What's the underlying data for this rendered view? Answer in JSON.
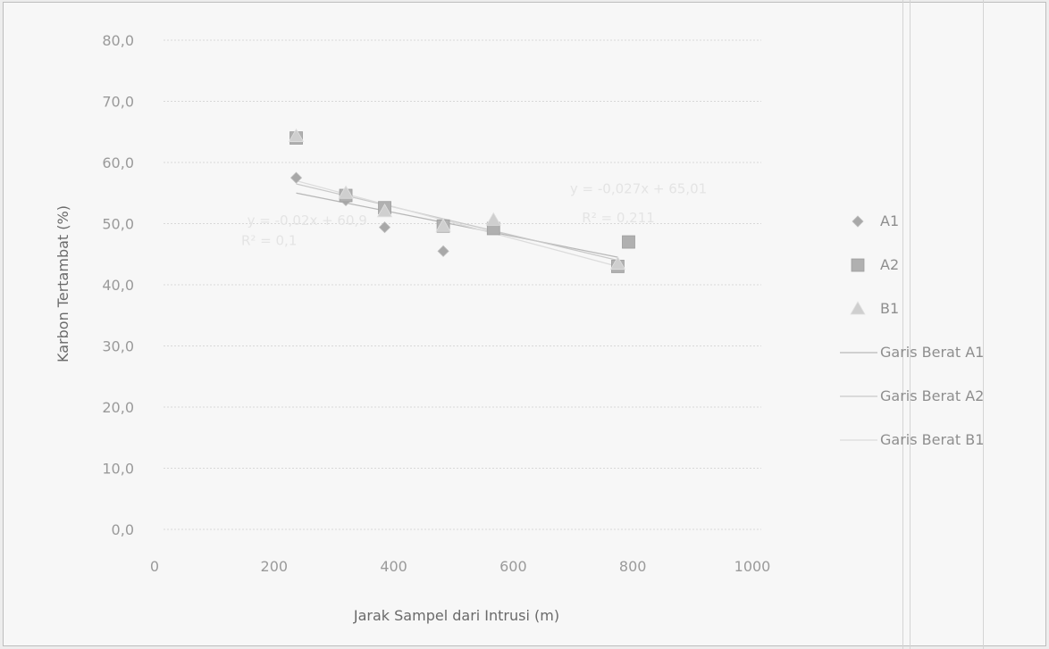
{
  "chart_data": {
    "type": "scatter",
    "title": "",
    "xlabel": "Jarak Sampel dari Intrusi (m)",
    "ylabel": "Karbon Tertambat (%)",
    "xlim": [
      0,
      1000
    ],
    "ylim": [
      0,
      80
    ],
    "x_ticks": [
      "0",
      "200",
      "400",
      "600",
      "800",
      "1000"
    ],
    "y_ticks": [
      "0,0",
      "10,0",
      "20,0",
      "30,0",
      "40,0",
      "50,0",
      "60,0",
      "70,0",
      "80,0"
    ],
    "grid": true,
    "legend_position": "right",
    "series": [
      {
        "name": "A1",
        "marker": "diamond",
        "color": "#a8a8a8",
        "points": [
          [
            222,
            57.5
          ],
          [
            305,
            53.8
          ],
          [
            370,
            49.4
          ],
          [
            468,
            45.5
          ],
          [
            552,
            49.3
          ],
          [
            760,
            43.2
          ]
        ]
      },
      {
        "name": "A2",
        "marker": "square",
        "color": "#b0b0b0",
        "points": [
          [
            222,
            64.0
          ],
          [
            305,
            54.6
          ],
          [
            370,
            52.6
          ],
          [
            468,
            49.6
          ],
          [
            552,
            49.2
          ],
          [
            760,
            43.0
          ],
          [
            778,
            47.0
          ]
        ]
      },
      {
        "name": "B1",
        "marker": "triangle",
        "color": "#cfcfcf",
        "points": [
          [
            222,
            64.3
          ],
          [
            305,
            55.0
          ],
          [
            370,
            52.0
          ],
          [
            468,
            49.6
          ],
          [
            552,
            50.6
          ],
          [
            760,
            43.4
          ]
        ]
      }
    ],
    "trendlines": [
      {
        "name": "Garis Berat A1",
        "color": "#b8b8b8",
        "x": [
          222,
          760
        ],
        "y": [
          55.0,
          44.5
        ]
      },
      {
        "name": "Garis Berat A2",
        "color": "#c9c9c9",
        "x": [
          222,
          760
        ],
        "y": [
          56.5,
          44.0
        ]
      },
      {
        "name": "Garis Berat B1",
        "color": "#dcdcdc",
        "x": [
          222,
          760
        ],
        "y": [
          57.0,
          43.0
        ]
      }
    ],
    "annotations": [
      {
        "text": "y = -0,027x + 65,01",
        "x": 680,
        "y": 55.0
      },
      {
        "text": "R² = 0,211",
        "x": 700,
        "y": 50.2
      },
      {
        "text": "y = -0,02x + 60,9",
        "x": 140,
        "y": 49.8
      },
      {
        "text": "R² = 0,1",
        "x": 130,
        "y": 46.5
      }
    ]
  }
}
